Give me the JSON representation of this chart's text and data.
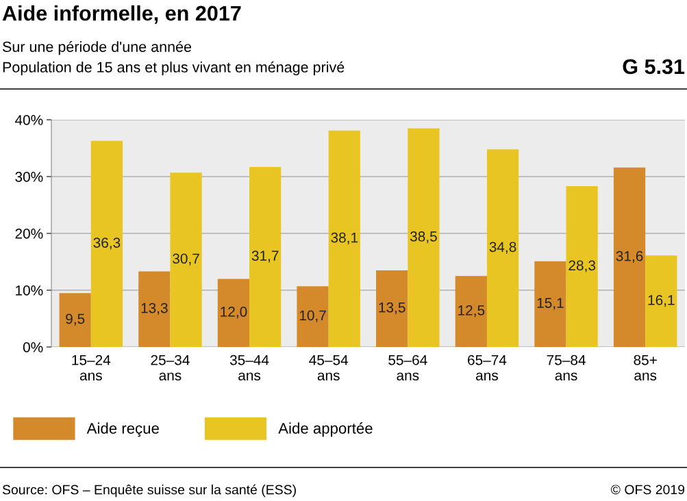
{
  "chart_data": {
    "type": "bar",
    "title": "Aide informelle, en 2017",
    "subtitle": "Sur une période d'une année\nPopulation de 15 ans et plus vivant en ménage privé",
    "annotations": [
      "G 5.31",
      "Source: OFS – Enquête suisse sur la santé (ESS)",
      "© OFS 2019"
    ],
    "categories": [
      "15–24\nans",
      "25–34\nans",
      "35–44\nans",
      "45–54\nans",
      "55–64\nans",
      "65–74\nans",
      "75–84\nans",
      "85+\nans"
    ],
    "series": [
      {
        "name": "Aide reçue",
        "color": "#d4892a",
        "values": [
          9.5,
          13.3,
          12.0,
          10.7,
          13.5,
          12.5,
          15.1,
          31.6
        ],
        "value_labels": [
          "9,5",
          "13,3",
          "12,0",
          "10,7",
          "13,5",
          "12,5",
          "15,1",
          "31,6"
        ]
      },
      {
        "name": "Aide apportée",
        "color": "#e8c523",
        "values": [
          36.3,
          30.7,
          31.7,
          38.1,
          38.5,
          34.8,
          28.3,
          16.1
        ],
        "value_labels": [
          "36,3",
          "30,7",
          "31,7",
          "38,1",
          "38,5",
          "34,8",
          "28,3",
          "16,1"
        ]
      }
    ],
    "ylim": [
      0,
      40
    ],
    "yticks": [
      {
        "value": 0,
        "label": "0%"
      },
      {
        "value": 10,
        "label": "10%"
      },
      {
        "value": 20,
        "label": "20%"
      },
      {
        "value": 30,
        "label": "30%"
      },
      {
        "value": 40,
        "label": "40%"
      }
    ],
    "grid": "y",
    "legend": "bottom left"
  }
}
